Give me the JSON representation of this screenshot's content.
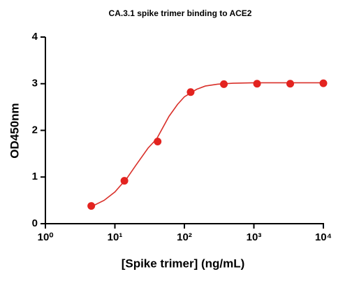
{
  "chart_data": {
    "type": "scatter",
    "title": "CA.3.1 spike trimer binding to ACE2",
    "xlabel": "[Spike trimer] (ng/mL)",
    "ylabel": "OD450nm",
    "xscale": "log",
    "xlim": [
      1,
      10000
    ],
    "xticks": [
      {
        "value": 1,
        "label": "10⁰"
      },
      {
        "value": 10,
        "label": "10¹"
      },
      {
        "value": 100,
        "label": "10²"
      },
      {
        "value": 1000,
        "label": "10³"
      },
      {
        "value": 10000,
        "label": "10⁴"
      }
    ],
    "ylim": [
      0,
      4
    ],
    "yticks": [
      0,
      1,
      2,
      3,
      4
    ],
    "color": "#e3231f",
    "x": [
      4.57,
      13.7,
      41.2,
      123,
      370,
      1111,
      3333,
      10000
    ],
    "values": [
      0.38,
      0.92,
      1.76,
      2.82,
      2.99,
      3.0,
      3.0,
      3.01
    ],
    "fit": {
      "color": "#d9302a",
      "x": [
        4.5,
        7,
        10,
        15,
        20,
        30,
        40,
        60,
        80,
        100,
        150,
        200,
        300,
        500,
        1000,
        3000,
        10000
      ],
      "values": [
        0.36,
        0.5,
        0.68,
        0.98,
        1.25,
        1.62,
        1.82,
        2.3,
        2.56,
        2.72,
        2.88,
        2.95,
        2.99,
        3.01,
        3.02,
        3.02,
        3.02
      ]
    }
  }
}
